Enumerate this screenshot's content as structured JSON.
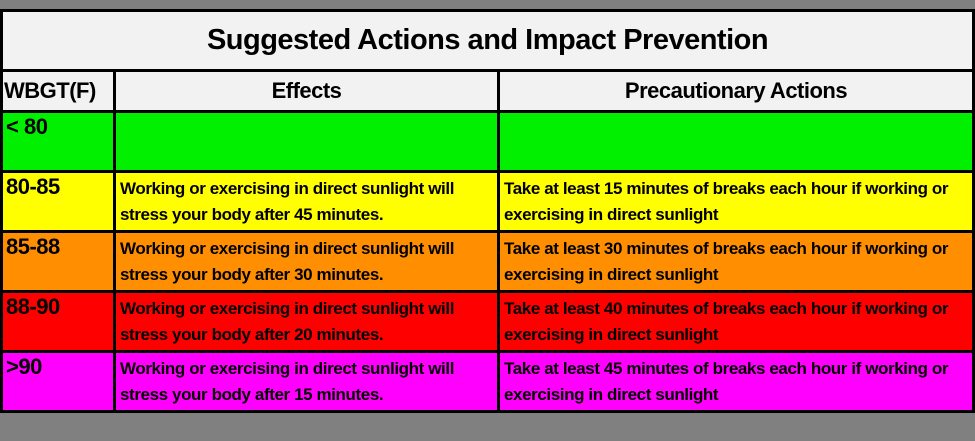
{
  "page": {
    "background_color": "#808080",
    "header_background_color": "#F2F2F2",
    "border_color": "#000000",
    "text_color": "#000000"
  },
  "title": "Suggested Actions and Impact Prevention",
  "columns": [
    "WBGT(F)",
    "Effects",
    "Precautionary Actions"
  ],
  "rows": [
    {
      "wbgt": "< 80",
      "effects": "",
      "actions": "",
      "color": "#00F000"
    },
    {
      "wbgt": "80-85",
      "effects": "Working or exercising in direct sunlight will stress your body after 45 minutes.",
      "actions": "Take at least 15 minutes of breaks each hour if working or exercising in direct sunlight",
      "color": "#FFFF00"
    },
    {
      "wbgt": "85-88",
      "effects": "Working or exercising in direct sunlight will stress your body after 30 minutes.",
      "actions": "Take at least 30 minutes of breaks each hour if working or exercising in direct sunlight",
      "color": "#FF8F00"
    },
    {
      "wbgt": "88-90",
      "effects": "Working or exercising in direct sunlight will stress your body after 20 minutes.",
      "actions": "Take at least 40 minutes of breaks each hour if working or exercising in direct sunlight",
      "color": "#FF0000"
    },
    {
      "wbgt": ">90",
      "effects": "Working or exercising in direct sunlight will stress your body after 15 minutes.",
      "actions": "Take at least 45 minutes of breaks each hour if working or exercising in direct sunlight",
      "color": "#FF00FF"
    }
  ]
}
